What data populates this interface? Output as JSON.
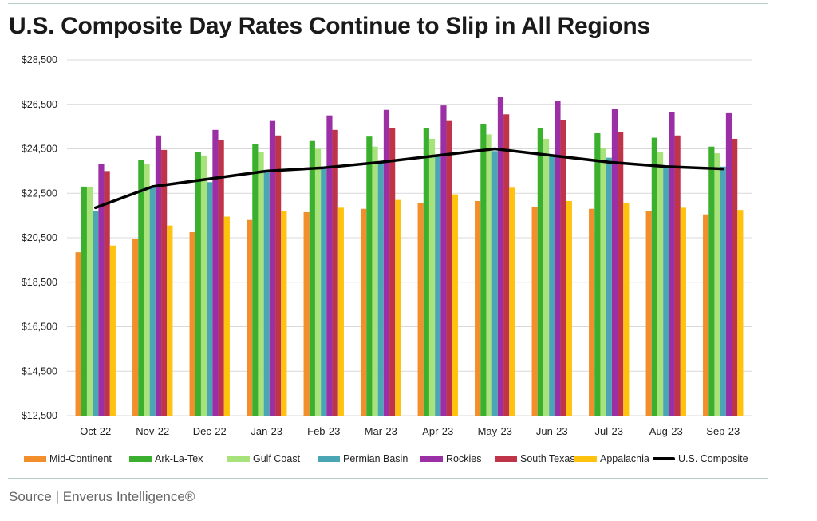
{
  "header": {
    "title": "U.S. Composite Day Rates Continue to Slip in All Regions"
  },
  "footer": {
    "source": "Source | Enverus Intelligence®"
  },
  "chart_data": {
    "type": "bar",
    "categories": [
      "Oct-22",
      "Nov-22",
      "Dec-22",
      "Jan-23",
      "Feb-23",
      "Mar-23",
      "Apr-23",
      "May-23",
      "Jun-23",
      "Jul-23",
      "Aug-23",
      "Sep-23"
    ],
    "ylim": [
      12500,
      28500
    ],
    "yticks": [
      12500,
      14500,
      16500,
      18500,
      20500,
      22500,
      24500,
      26500,
      28500
    ],
    "ytick_labels": [
      "$12,500",
      "$14,500",
      "$16,500",
      "$18,500",
      "$20,500",
      "$22,500",
      "$24,500",
      "$26,500",
      "$28,500"
    ],
    "grid": true,
    "legend_position": "bottom",
    "series": [
      {
        "name": "Mid-Continent",
        "color": "#f28e2b",
        "values": [
          19850,
          20450,
          20750,
          21300,
          21650,
          21800,
          22050,
          22150,
          21900,
          21800,
          21700,
          21550
        ]
      },
      {
        "name": "Ark-La-Tex",
        "color": "#3bb02e",
        "values": [
          22800,
          24000,
          24350,
          24700,
          24850,
          25050,
          25450,
          25600,
          25450,
          25200,
          25000,
          24600
        ]
      },
      {
        "name": "Gulf Coast",
        "color": "#a8e27a",
        "values": [
          22800,
          23800,
          24200,
          24350,
          24500,
          24600,
          24950,
          25150,
          24950,
          24550,
          24350,
          24300
        ]
      },
      {
        "name": "Permian Basin",
        "color": "#4aa6b5",
        "values": [
          21700,
          22800,
          23000,
          23450,
          23600,
          23900,
          24200,
          24400,
          24200,
          24100,
          23750,
          23700
        ]
      },
      {
        "name": "Rockies",
        "color": "#9b2fa5",
        "values": [
          23800,
          25100,
          25350,
          25750,
          26000,
          26250,
          26450,
          26850,
          26650,
          26300,
          26150,
          26100
        ]
      },
      {
        "name": "South Texas",
        "color": "#c0344a",
        "values": [
          23500,
          24450,
          24900,
          25100,
          25350,
          25450,
          25750,
          26050,
          25800,
          25250,
          25100,
          24950
        ]
      },
      {
        "name": "Appalachia",
        "color": "#ffc20e",
        "values": [
          20150,
          21050,
          21450,
          21700,
          21850,
          22200,
          22450,
          22750,
          22150,
          22050,
          21850,
          21750
        ]
      }
    ],
    "line_series": {
      "name": "U.S. Composite",
      "color": "#000000",
      "values": [
        21850,
        22800,
        23150,
        23500,
        23650,
        23900,
        24200,
        24500,
        24200,
        23900,
        23700,
        23600
      ]
    }
  }
}
